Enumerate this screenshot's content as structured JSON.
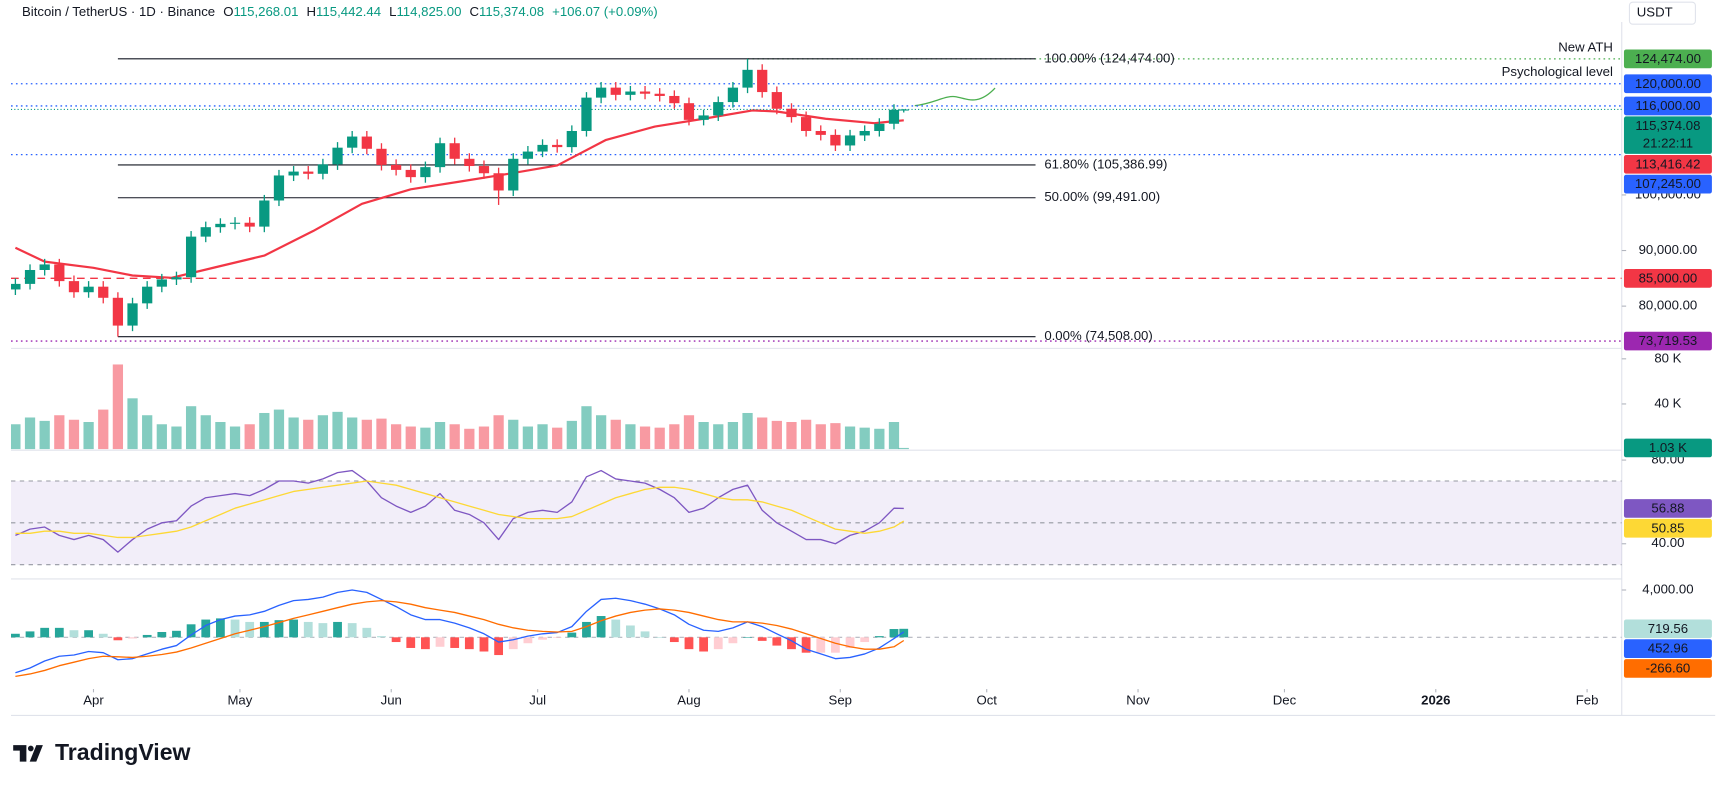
{
  "chart_data": {
    "type": "candlestick",
    "title": "Bitcoin / TetherUS · 1D · Binance",
    "ohlc_legend": [
      {
        "key": "O",
        "value": "115,268.01"
      },
      {
        "key": "H",
        "value": "115,442.44"
      },
      {
        "key": "L",
        "value": "114,825.00"
      },
      {
        "key": "C",
        "value": "115,374.08"
      }
    ],
    "change": "+106.07 (+0.09%)",
    "currency": "USDT",
    "colors": {
      "up": "#089981",
      "down": "#f23645"
    },
    "xlim": [
      -16.9,
      313.1
    ],
    "xticks": [
      {
        "value": 0,
        "label": "Apr"
      },
      {
        "value": 30,
        "label": "May"
      },
      {
        "value": 61,
        "label": "Jun"
      },
      {
        "value": 91,
        "label": "Jul"
      },
      {
        "value": 122,
        "label": "Aug"
      },
      {
        "value": 153,
        "label": "Sep"
      },
      {
        "value": 183,
        "label": "Oct"
      },
      {
        "value": 214,
        "label": "Nov"
      },
      {
        "value": 244,
        "label": "Dec"
      },
      {
        "value": 275,
        "label": "2026"
      },
      {
        "value": 306,
        "label": "Feb"
      }
    ],
    "x": [
      -16,
      -13,
      -10,
      -7,
      -4,
      -1,
      2,
      5,
      8,
      11,
      14,
      17,
      20,
      23,
      26,
      29,
      32,
      35,
      38,
      41,
      44,
      47,
      50,
      53,
      56,
      59,
      62,
      65,
      68,
      71,
      74,
      77,
      80,
      83,
      86,
      89,
      92,
      95,
      98,
      101,
      104,
      107,
      110,
      113,
      116,
      119,
      122,
      125,
      128,
      131,
      134,
      137,
      140,
      143,
      146,
      149,
      152,
      155,
      158,
      161,
      164,
      166
    ],
    "open": [
      83000,
      84000,
      86500,
      87500,
      84500,
      82500,
      83500,
      81500,
      76500,
      80500,
      83500,
      84800,
      85200,
      92500,
      94200,
      94800,
      95000,
      94300,
      99000,
      103500,
      104200,
      103800,
      105500,
      108500,
      110500,
      108300,
      105400,
      104500,
      103200,
      105000,
      109300,
      106500,
      105200,
      103900,
      100800,
      106500,
      107800,
      109000,
      108600,
      111500,
      117500,
      119300,
      118000,
      118600,
      118200,
      117800,
      116500,
      113500,
      114300,
      116700,
      119300,
      122500,
      118500,
      115500,
      114000,
      111500,
      110800,
      108900,
      110700,
      111500,
      112800,
      115268.01
    ],
    "high": [
      85000,
      87500,
      88500,
      88500,
      85500,
      84500,
      84500,
      82500,
      81500,
      84500,
      85800,
      86200,
      93500,
      95200,
      95800,
      96000,
      96000,
      100000,
      104500,
      105200,
      105200,
      106500,
      109500,
      111500,
      111500,
      109300,
      106400,
      105500,
      106000,
      110300,
      110300,
      107500,
      106200,
      104900,
      107500,
      108800,
      110000,
      110000,
      112500,
      118500,
      120300,
      120300,
      119600,
      119600,
      119200,
      118800,
      117500,
      115300,
      117700,
      120300,
      124474,
      123500,
      119500,
      116500,
      115000,
      112500,
      111800,
      111700,
      112500,
      113800,
      116300,
      115442.44
    ],
    "low": [
      82000,
      83000,
      85500,
      83500,
      81500,
      81500,
      80500,
      74508,
      75500,
      79500,
      82500,
      83800,
      84200,
      91500,
      93200,
      93800,
      93300,
      93300,
      98000,
      102500,
      102800,
      102800,
      104500,
      107500,
      107300,
      104400,
      103500,
      102200,
      102200,
      104000,
      105500,
      104200,
      102900,
      98200,
      99800,
      105500,
      106800,
      107600,
      107600,
      110500,
      116500,
      117000,
      117000,
      117200,
      116800,
      115500,
      112500,
      112500,
      113300,
      115700,
      118300,
      117500,
      114500,
      113000,
      110500,
      109800,
      107900,
      107900,
      109700,
      110500,
      111800,
      114825
    ],
    "close": [
      84000,
      86500,
      87500,
      84500,
      82500,
      83500,
      81500,
      76500,
      80500,
      83500,
      84800,
      85200,
      92500,
      94200,
      94800,
      95000,
      94300,
      99000,
      103500,
      104200,
      103800,
      105500,
      108500,
      110500,
      108300,
      105400,
      104500,
      103200,
      105000,
      109300,
      106500,
      105200,
      103900,
      100800,
      106500,
      107800,
      109000,
      108600,
      111500,
      117500,
      119300,
      118000,
      118600,
      118200,
      117800,
      116500,
      113500,
      114300,
      116700,
      119300,
      122500,
      118500,
      115500,
      114000,
      111500,
      110800,
      108900,
      110700,
      111500,
      112800,
      115300,
      115374.08
    ],
    "last_label": "115,374.08",
    "countdown": "21:22:11",
    "ylim": [
      72700,
      131100
    ],
    "yticks": [
      {
        "value": 80000,
        "label": "80,000.00"
      },
      {
        "value": 90000,
        "label": "90,000.00"
      },
      {
        "value": 100000,
        "label": "100,000.00"
      }
    ],
    "grid": false,
    "sma": {
      "color": "#f23645",
      "x": [
        -16,
        -10,
        0,
        8,
        16,
        25,
        35,
        45,
        55,
        65,
        75,
        85,
        95,
        105,
        115,
        125,
        135,
        140,
        150,
        160,
        166
      ],
      "values": [
        90500,
        88000,
        86900,
        85500,
        85100,
        87000,
        89100,
        93500,
        98400,
        101000,
        102400,
        103800,
        105300,
        109900,
        112300,
        113700,
        115200,
        115000,
        113700,
        112900,
        113416.42
      ],
      "last_label": "113,416.42"
    },
    "levels": [
      {
        "value": 124474,
        "label": "124,474.00",
        "color": "#4caf50",
        "text": "New ATH",
        "from": 134
      },
      {
        "value": 120000,
        "label": "120,000.00",
        "color": "#2962ff",
        "text": "Psychological level"
      },
      {
        "value": 116000,
        "label": "116,000.00",
        "color": "#2962ff"
      },
      {
        "value": 107245,
        "label": "107,245.00",
        "color": "#2962ff"
      },
      {
        "value": 85000,
        "label": "85,000.00",
        "color": "#f23645",
        "dash": "dashed"
      },
      {
        "value": 73719.53,
        "label": "73,719.53",
        "color": "#9c27b0"
      }
    ],
    "fib": {
      "color": "#131722",
      "x_range": [
        5,
        193
      ],
      "levels": [
        {
          "value": 124474,
          "label": "100.00% (124,474.00)"
        },
        {
          "value": 105386.99,
          "label": "61.80% (105,386.99)"
        },
        {
          "value": 99491,
          "label": "50.00% (99,491.00)"
        },
        {
          "value": 74508,
          "label": "0.00% (74,508.00)"
        }
      ]
    },
    "volume": {
      "ylim": [
        0,
        87800
      ],
      "yticks": [
        {
          "value": 40000,
          "label": "40 K"
        },
        {
          "value": 80000,
          "label": "80 K"
        }
      ],
      "colors": {
        "up": "rgba(8,153,129,0.5)",
        "down": "rgba(242,54,69,0.5)"
      },
      "values": [
        22000,
        28000,
        25000,
        30000,
        26000,
        24000,
        35000,
        75000,
        45000,
        30000,
        22000,
        20000,
        38000,
        30000,
        24000,
        20000,
        22000,
        32000,
        35000,
        28000,
        26000,
        30000,
        33000,
        28000,
        26000,
        27000,
        22000,
        20000,
        19000,
        24000,
        22000,
        18000,
        20000,
        30000,
        26000,
        20000,
        22000,
        19000,
        25000,
        38000,
        30000,
        26000,
        22000,
        20000,
        19000,
        22000,
        30000,
        24000,
        22000,
        24000,
        32000,
        28000,
        25000,
        24000,
        26000,
        22000,
        23000,
        20000,
        19000,
        18000,
        24000,
        1030
      ],
      "last_label": "1.03 K"
    },
    "rsi": {
      "ylim": [
        23.7,
        84.2
      ],
      "yticks": [
        {
          "value": 40,
          "label": "40.00"
        },
        {
          "value": 80,
          "label": "80.00"
        }
      ],
      "levels": [
        70,
        50,
        30
      ],
      "band_color": "rgba(126,87,194,0.1)",
      "lines": [
        {
          "color": "#7e57c2",
          "values": [
            44,
            47,
            48,
            44,
            42,
            44,
            42,
            36,
            42,
            47,
            50,
            51,
            58,
            62,
            63,
            64,
            63,
            66,
            70,
            70,
            69,
            71,
            74,
            75,
            70,
            62,
            58,
            55,
            58,
            64,
            56,
            54,
            50,
            42,
            52,
            55,
            56,
            55,
            60,
            72,
            75,
            71,
            70,
            69,
            66,
            62,
            55,
            57,
            62,
            66,
            68,
            56,
            50,
            46,
            42,
            42,
            40,
            44,
            46,
            50,
            57,
            56.88
          ]
        },
        {
          "color": "#fdd835",
          "values": [
            45,
            45,
            46,
            46,
            45,
            45,
            44,
            43,
            43,
            44,
            45,
            46,
            48,
            51,
            54,
            57,
            59,
            61,
            63,
            65,
            66,
            67,
            68,
            69,
            70,
            69,
            68,
            66,
            64,
            62,
            60,
            58,
            56,
            54,
            53,
            52,
            52,
            52,
            53,
            56,
            59,
            62,
            64,
            66,
            67,
            67,
            66,
            64,
            62,
            61,
            61,
            60,
            58,
            56,
            53,
            50,
            47,
            46,
            45,
            46,
            48,
            50.85
          ]
        }
      ]
    },
    "macd": {
      "ylim": [
        -4280,
        4840
      ],
      "yticks": [
        {
          "value": 4000,
          "label": "4,000.00"
        }
      ],
      "histogram": {
        "colors": [
          "#26a69a",
          "#b2dfdb",
          "#ffcdd2",
          "#ff5252"
        ],
        "values": [
          300,
          500,
          800,
          800,
          600,
          600,
          300,
          -250,
          -100,
          200,
          450,
          550,
          1100,
          1500,
          1600,
          1500,
          1300,
          1300,
          1450,
          1500,
          1300,
          1200,
          1300,
          1200,
          800,
          100,
          -400,
          -900,
          -1000,
          -800,
          -900,
          -1000,
          -1200,
          -1500,
          -1000,
          -500,
          -200,
          -50,
          400,
          1300,
          1800,
          1500,
          1000,
          500,
          0,
          -400,
          -1000,
          -1200,
          -1000,
          -500,
          0,
          -300,
          -700,
          -1000,
          -1300,
          -1300,
          -1300,
          -900,
          -400,
          100,
          700,
          719.56
        ]
      },
      "lines": [
        {
          "color": "#2962ff",
          "values": [
            -3000,
            -2600,
            -2000,
            -1600,
            -1500,
            -1200,
            -1300,
            -1900,
            -1800,
            -1400,
            -1000,
            -700,
            200,
            1000,
            1500,
            1800,
            1900,
            2200,
            2700,
            3100,
            3200,
            3400,
            3800,
            4000,
            3800,
            3200,
            2600,
            1900,
            1500,
            1500,
            1200,
            800,
            300,
            -400,
            -200,
            100,
            300,
            400,
            900,
            2200,
            3200,
            3300,
            3100,
            2800,
            2400,
            1900,
            1100,
            600,
            500,
            800,
            1300,
            900,
            300,
            -300,
            -1000,
            -1400,
            -1800,
            -1700,
            -1400,
            -900,
            -100,
            452.96
          ]
        },
        {
          "color": "#ff6d00",
          "values": [
            -3300,
            -3100,
            -2800,
            -2400,
            -2100,
            -1800,
            -1600,
            -1650,
            -1700,
            -1600,
            -1450,
            -1250,
            -900,
            -500,
            -100,
            300,
            600,
            900,
            1250,
            1600,
            1900,
            2200,
            2500,
            2800,
            3000,
            3100,
            3000,
            2800,
            2500,
            2300,
            2100,
            1800,
            1500,
            1100,
            800,
            600,
            500,
            450,
            500,
            900,
            1400,
            1800,
            2100,
            2300,
            2400,
            2300,
            2100,
            1800,
            1500,
            1300,
            1300,
            1200,
            1000,
            700,
            300,
            -100,
            -500,
            -800,
            -1000,
            -1000,
            -800,
            -266.6
          ],
          "last_label": "-266.60"
        }
      ]
    }
  },
  "brand": "TradingView"
}
